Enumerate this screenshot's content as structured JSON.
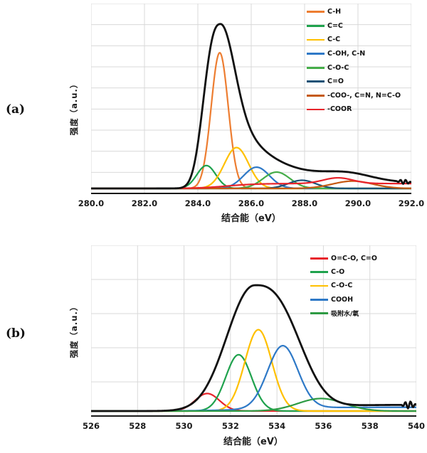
{
  "figure": {
    "description": "Two stacked XPS fitted spectra panels",
    "background": "#ffffff",
    "grid_color": "#d9d9d9",
    "axis_color": "#1a1a1a"
  },
  "chart_data": [
    {
      "panel_label": "(a)",
      "type": "line",
      "title": "",
      "xlabel": "结合能（eV）",
      "ylabel": "强度（a.u.）",
      "xlim": [
        280,
        292
      ],
      "ylim": [
        0,
        108
      ],
      "y_unit": "percent of envelope peak (a.u.)",
      "grid": true,
      "legend_position": "top-right",
      "x_ticks": [
        "280.0",
        "282.0",
        "284.0",
        "286.0",
        "288.0",
        "290.0",
        "292.0"
      ],
      "series": [
        {
          "name": "C-H",
          "color": "#ED7D31",
          "peaks": [
            {
              "c": 284.82,
              "h": 83,
              "w": 0.45
            }
          ]
        },
        {
          "name": "C=C",
          "color": "#1FA24D",
          "peaks": [
            {
              "c": 284.32,
              "h": 14,
              "w": 0.5
            }
          ]
        },
        {
          "name": "C-C",
          "color": "#FFC000",
          "peaks": [
            {
              "c": 285.45,
              "h": 25,
              "w": 0.64
            }
          ]
        },
        {
          "name": "C-OH, C-N",
          "color": "#2E79C7",
          "peaks": [
            {
              "c": 286.2,
              "h": 13,
              "w": 0.68
            }
          ]
        },
        {
          "name": "C-O-C",
          "color": "#45AD49",
          "peaks": [
            {
              "c": 286.95,
              "h": 10,
              "w": 0.71
            }
          ]
        },
        {
          "name": "C=O",
          "color": "#1A5276",
          "peaks": [
            {
              "c": 287.9,
              "h": 5,
              "w": 0.71
            }
          ]
        },
        {
          "name": "-COO-, C=N, N=C-O",
          "color": "#C55A11",
          "peaks": [
            {
              "c": 289.8,
              "h": 4.5,
              "w": 1.06
            }
          ]
        },
        {
          "name": "-COOR",
          "color": "#E8242B",
          "peaks": [
            {
              "c": 289.25,
              "h": 3.5,
              "w": 0.78
            }
          ],
          "steps": [
            {
              "c": 285.1,
              "h": 3,
              "w": 0.55
            }
          ]
        },
        {
          "name": "envelope",
          "is_envelope": true,
          "color": "#111111",
          "peaks": [
            {
              "c": 284.85,
              "h": 100,
              "left": {
                "w": 0.77,
                "p": 2.65
              },
              "right": {
                "w": 0.72,
                "p": 2,
                "eta": 0.45,
                "g": 1.6
              }
            },
            {
              "c": 289.6,
              "h": 4,
              "w": 1.27
            }
          ],
          "steps": [
            {
              "c": 285.2,
              "h": 1.5,
              "w": 0.6
            }
          ],
          "end_noise": 3
        }
      ]
    },
    {
      "panel_label": "(b)",
      "type": "line",
      "title": "",
      "xlabel": "结合能（eV）",
      "ylabel": "强度（a.u.）",
      "xlim": [
        526,
        540
      ],
      "ylim": [
        0,
        108
      ],
      "y_unit": "percent of envelope peak (a.u.)",
      "grid": true,
      "legend_position": "top-right",
      "x_ticks": [
        "526",
        "528",
        "530",
        "532",
        "534",
        "536",
        "538",
        "540"
      ],
      "series": [
        {
          "name": "O=C-O, C=O",
          "color": "#E8242B",
          "peaks": [
            {
              "c": 531.0,
              "h": 14,
              "w": 0.74
            }
          ]
        },
        {
          "name": "C-O",
          "color": "#1FA24D",
          "peaks": [
            {
              "c": 532.35,
              "h": 45,
              "w": 0.78
            }
          ]
        },
        {
          "name": "C-O-C",
          "color": "#FFC000",
          "peaks": [
            {
              "c": 533.2,
              "h": 65,
              "w": 0.82
            }
          ]
        },
        {
          "name": "COOH",
          "color": "#2E79C7",
          "peaks": [
            {
              "c": 534.25,
              "h": 50,
              "w": 0.92
            }
          ],
          "steps": [
            {
              "c": 533.0,
              "h": 3,
              "w": 1.2
            }
          ]
        },
        {
          "name": "吸附水/氧",
          "color": "#2E9B44",
          "peaks": [
            {
              "c": 535.9,
              "h": 10,
              "w": 1.41
            }
          ]
        },
        {
          "name": "envelope",
          "is_envelope": true,
          "color": "#111111",
          "peaks": [
            {
              "c": 533.05,
              "h": 100,
              "left": {
                "w": 1.65,
                "p": 2.1
              },
              "right": {
                "w": 2.29,
                "p": 2.7
              }
            }
          ],
          "steps": [
            {
              "c": 535.2,
              "h": 5,
              "w": 1.0
            }
          ],
          "end_noise": 5
        }
      ]
    }
  ]
}
